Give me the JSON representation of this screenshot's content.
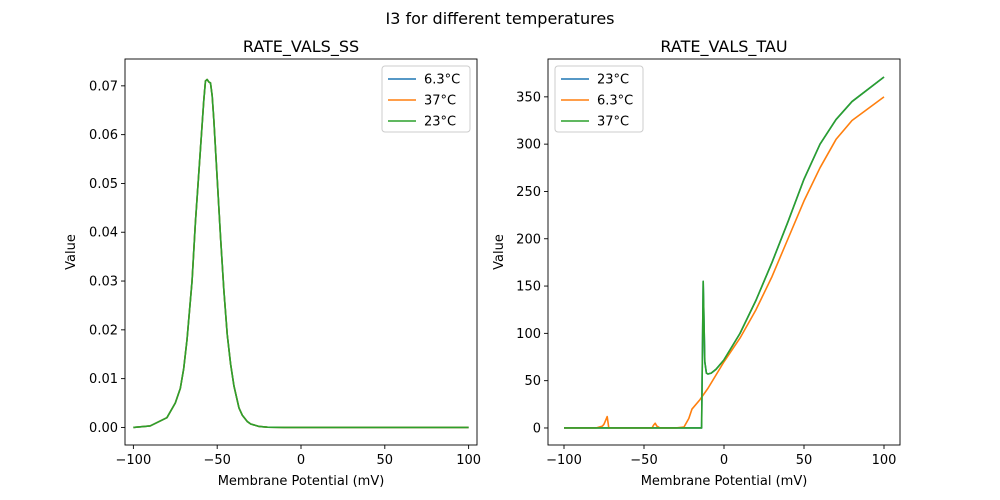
{
  "suptitle": "I3 for different temperatures",
  "chart_data": [
    {
      "type": "line",
      "title": "RATE_VALS_SS",
      "xlabel": "Membrane Potential (mV)",
      "ylabel": "Value",
      "xlim": [
        -105,
        105
      ],
      "ylim": [
        -0.0036,
        0.0755
      ],
      "xticks": [
        -100,
        -50,
        0,
        50,
        100
      ],
      "xtick_labels": [
        "−100",
        "−50",
        "0",
        "50",
        "100"
      ],
      "yticks": [
        0.0,
        0.01,
        0.02,
        0.03,
        0.04,
        0.05,
        0.06,
        0.07
      ],
      "ytick_labels": [
        "0.00",
        "0.01",
        "0.02",
        "0.03",
        "0.04",
        "0.05",
        "0.06",
        "0.07"
      ],
      "legend_position": "upper right",
      "series": [
        {
          "name": "6.3°C",
          "color": "#1f77b4",
          "x": [
            -100,
            -90,
            -80,
            -75,
            -72,
            -70,
            -68,
            -65,
            -63,
            -60,
            -58,
            -57,
            -56,
            -55,
            -54,
            -53,
            -52,
            -50,
            -48,
            -46,
            -44,
            -42,
            -40,
            -37,
            -35,
            -32,
            -30,
            -25,
            -20,
            -10,
            0,
            100
          ],
          "y": [
            0.0,
            0.0003,
            0.002,
            0.005,
            0.008,
            0.012,
            0.018,
            0.03,
            0.042,
            0.057,
            0.067,
            0.071,
            0.0713,
            0.0708,
            0.0706,
            0.068,
            0.063,
            0.051,
            0.039,
            0.028,
            0.019,
            0.013,
            0.0085,
            0.004,
            0.0025,
            0.0012,
            0.0007,
            0.0002,
            5e-05,
            0.0,
            0.0,
            0.0
          ]
        },
        {
          "name": "37°C",
          "color": "#ff7f0e",
          "x": [
            -100,
            -90,
            -80,
            -75,
            -72,
            -70,
            -68,
            -65,
            -63,
            -60,
            -58,
            -57,
            -56,
            -55,
            -54,
            -53,
            -52,
            -50,
            -48,
            -46,
            -44,
            -42,
            -40,
            -37,
            -35,
            -32,
            -30,
            -25,
            -20,
            -10,
            0,
            100
          ],
          "y": [
            0.0,
            0.0003,
            0.002,
            0.005,
            0.008,
            0.012,
            0.018,
            0.03,
            0.042,
            0.057,
            0.067,
            0.071,
            0.0713,
            0.0708,
            0.0706,
            0.068,
            0.063,
            0.051,
            0.039,
            0.028,
            0.019,
            0.013,
            0.0085,
            0.004,
            0.0025,
            0.0012,
            0.0007,
            0.0002,
            5e-05,
            0.0,
            0.0,
            0.0
          ]
        },
        {
          "name": "23°C",
          "color": "#2ca02c",
          "x": [
            -100,
            -90,
            -80,
            -75,
            -72,
            -70,
            -68,
            -65,
            -63,
            -60,
            -58,
            -57,
            -56,
            -55,
            -54,
            -53,
            -52,
            -50,
            -48,
            -46,
            -44,
            -42,
            -40,
            -37,
            -35,
            -32,
            -30,
            -25,
            -20,
            -10,
            0,
            100
          ],
          "y": [
            0.0,
            0.0003,
            0.002,
            0.005,
            0.008,
            0.012,
            0.018,
            0.03,
            0.042,
            0.057,
            0.067,
            0.071,
            0.0713,
            0.0708,
            0.0706,
            0.068,
            0.063,
            0.051,
            0.039,
            0.028,
            0.019,
            0.013,
            0.0085,
            0.004,
            0.0025,
            0.0012,
            0.0007,
            0.0002,
            5e-05,
            0.0,
            0.0,
            0.0
          ]
        }
      ]
    },
    {
      "type": "line",
      "title": "RATE_VALS_TAU",
      "xlabel": "Membrane Potential (mV)",
      "ylabel": "Value",
      "xlim": [
        -110,
        110
      ],
      "ylim": [
        -18,
        390
      ],
      "xticks": [
        -100,
        -50,
        0,
        50,
        100
      ],
      "xtick_labels": [
        "−100",
        "−50",
        "0",
        "50",
        "100"
      ],
      "yticks": [
        0,
        50,
        100,
        150,
        200,
        250,
        300,
        350
      ],
      "ytick_labels": [
        "0",
        "50",
        "100",
        "150",
        "200",
        "250",
        "300",
        "350"
      ],
      "legend_position": "upper left",
      "series": [
        {
          "name": "23°C",
          "color": "#1f77b4",
          "x": [
            -100,
            -80,
            -60,
            -40,
            -20,
            -15,
            -14,
            -13,
            -12,
            -11,
            -10,
            -8,
            -5,
            0,
            10,
            20,
            30,
            40,
            50,
            60,
            70,
            80,
            100
          ],
          "y": [
            0,
            0,
            0,
            0,
            0,
            0,
            0,
            155,
            70,
            58,
            57,
            58,
            62,
            72,
            100,
            135,
            175,
            218,
            263,
            300,
            326,
            345,
            371
          ]
        },
        {
          "name": "6.3°C",
          "color": "#ff7f0e",
          "x": [
            -100,
            -80,
            -76,
            -75,
            -74,
            -73,
            -72,
            -70,
            -60,
            -50,
            -45,
            -44,
            -43,
            -42,
            -40,
            -30,
            -25,
            -22,
            -20,
            -15,
            -10,
            -5,
            0,
            10,
            20,
            30,
            40,
            50,
            60,
            70,
            80,
            100
          ],
          "y": [
            0,
            0,
            2,
            4,
            8,
            12,
            0,
            0,
            0,
            0,
            0,
            3,
            5,
            2,
            0,
            0,
            1,
            10,
            20,
            30,
            42,
            56,
            70,
            95,
            125,
            160,
            200,
            240,
            275,
            305,
            325,
            350
          ]
        },
        {
          "name": "37°C",
          "color": "#2ca02c",
          "x": [
            -100,
            -80,
            -60,
            -40,
            -20,
            -15,
            -14,
            -13,
            -12,
            -11,
            -10,
            -8,
            -5,
            0,
            10,
            20,
            30,
            40,
            50,
            60,
            70,
            80,
            100
          ],
          "y": [
            0,
            0,
            0,
            0,
            0,
            0,
            0,
            155,
            70,
            58,
            57,
            58,
            62,
            72,
            100,
            135,
            175,
            218,
            263,
            300,
            326,
            345,
            371
          ]
        }
      ]
    }
  ]
}
